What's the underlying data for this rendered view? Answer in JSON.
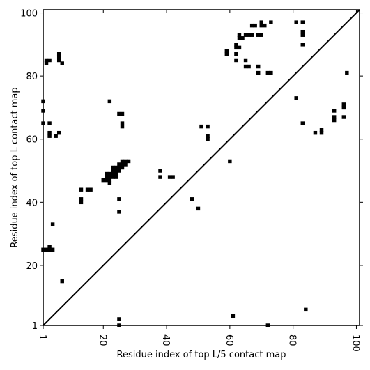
{
  "chart_data": {
    "type": "scatter",
    "title": "",
    "xlabel": "Residue index of top L/5 contact map",
    "ylabel": "Residue index of top L contact map",
    "xlim": [
      1,
      101
    ],
    "ylim": [
      1,
      101
    ],
    "xticks": [
      1,
      20,
      40,
      60,
      80,
      100
    ],
    "yticks": [
      1,
      20,
      40,
      60,
      80,
      100
    ],
    "marker": "square",
    "marker_color": "#000000",
    "diagonal": true,
    "grid": false,
    "legend": "none",
    "series": [
      {
        "values": [
          [
            1,
            72
          ],
          [
            1,
            69
          ],
          [
            1,
            65
          ],
          [
            1,
            25
          ],
          [
            2,
            25
          ],
          [
            3,
            25
          ],
          [
            4,
            25
          ],
          [
            3,
            26
          ],
          [
            2,
            84
          ],
          [
            2,
            85
          ],
          [
            3,
            85
          ],
          [
            3,
            65
          ],
          [
            3,
            62
          ],
          [
            3,
            61
          ],
          [
            4,
            33
          ],
          [
            5,
            61
          ],
          [
            6,
            62
          ],
          [
            6,
            85
          ],
          [
            6,
            86
          ],
          [
            6,
            87
          ],
          [
            7,
            84
          ],
          [
            7,
            15
          ],
          [
            13,
            44
          ],
          [
            13,
            41
          ],
          [
            13,
            40
          ],
          [
            15,
            44
          ],
          [
            16,
            44
          ],
          [
            20,
            47
          ],
          [
            21,
            47
          ],
          [
            21,
            48
          ],
          [
            21,
            49
          ],
          [
            22,
            72
          ],
          [
            22,
            46
          ],
          [
            22,
            47
          ],
          [
            22,
            48
          ],
          [
            22,
            49
          ],
          [
            23,
            48
          ],
          [
            23,
            49
          ],
          [
            23,
            50
          ],
          [
            23,
            51
          ],
          [
            24,
            48
          ],
          [
            24,
            49
          ],
          [
            24,
            50
          ],
          [
            24,
            51
          ],
          [
            25,
            68
          ],
          [
            25,
            50
          ],
          [
            25,
            51
          ],
          [
            25,
            52
          ],
          [
            25,
            41
          ],
          [
            25,
            37
          ],
          [
            25,
            3
          ],
          [
            25,
            1
          ],
          [
            26,
            68
          ],
          [
            26,
            65
          ],
          [
            26,
            64
          ],
          [
            26,
            51
          ],
          [
            26,
            52
          ],
          [
            26,
            53
          ],
          [
            27,
            52
          ],
          [
            27,
            53
          ],
          [
            28,
            53
          ],
          [
            38,
            50
          ],
          [
            38,
            48
          ],
          [
            41,
            48
          ],
          [
            42,
            48
          ],
          [
            48,
            41
          ],
          [
            50,
            38
          ],
          [
            51,
            64
          ],
          [
            53,
            64
          ],
          [
            53,
            61
          ],
          [
            53,
            60
          ],
          [
            60,
            53
          ],
          [
            61,
            4
          ],
          [
            59,
            88
          ],
          [
            59,
            87
          ],
          [
            62,
            90
          ],
          [
            62,
            89
          ],
          [
            62,
            87
          ],
          [
            62,
            85
          ],
          [
            63,
            93
          ],
          [
            63,
            92
          ],
          [
            63,
            89
          ],
          [
            64,
            92
          ],
          [
            65,
            93
          ],
          [
            65,
            85
          ],
          [
            65,
            83
          ],
          [
            66,
            93
          ],
          [
            66,
            83
          ],
          [
            67,
            96
          ],
          [
            67,
            93
          ],
          [
            68,
            96
          ],
          [
            69,
            93
          ],
          [
            69,
            83
          ],
          [
            69,
            81
          ],
          [
            70,
            97
          ],
          [
            70,
            96
          ],
          [
            70,
            93
          ],
          [
            71,
            96
          ],
          [
            72,
            81
          ],
          [
            72,
            1
          ],
          [
            73,
            97
          ],
          [
            73,
            81
          ],
          [
            81,
            97
          ],
          [
            81,
            73
          ],
          [
            83,
            97
          ],
          [
            83,
            94
          ],
          [
            83,
            93
          ],
          [
            83,
            90
          ],
          [
            83,
            65
          ],
          [
            84,
            6
          ],
          [
            87,
            62
          ],
          [
            89,
            63
          ],
          [
            89,
            62
          ],
          [
            93,
            69
          ],
          [
            93,
            67
          ],
          [
            93,
            66
          ],
          [
            96,
            71
          ],
          [
            96,
            70
          ],
          [
            96,
            67
          ],
          [
            97,
            81
          ]
        ]
      }
    ]
  }
}
